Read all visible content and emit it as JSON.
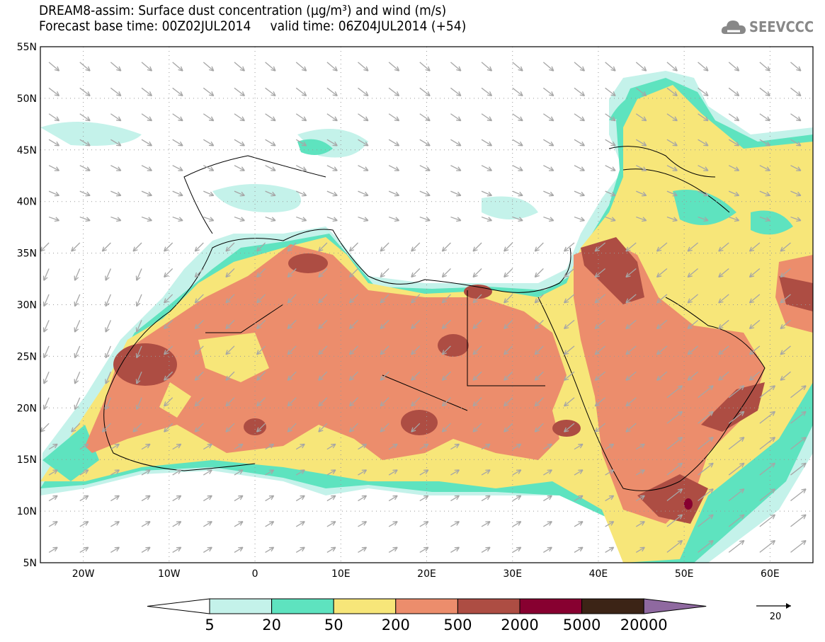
{
  "header": {
    "title_line1": "DREAM8-assim: Surface dust concentration (µg/m³) and wind (m/s)",
    "title_line2": "Forecast base time: 00Z02JUL2014     valid time: 06Z04JUL2014 (+54)",
    "logo_text": "SEEVCCC"
  },
  "map": {
    "lat_ticks": [
      "55N",
      "50N",
      "45N",
      "40N",
      "35N",
      "30N",
      "25N",
      "20N",
      "15N",
      "10N",
      "5N"
    ],
    "lon_ticks": [
      "20W",
      "10W",
      "0",
      "10E",
      "20E",
      "30E",
      "40E",
      "50E",
      "60E"
    ],
    "dust_colors": {
      "c5": "#c4f2ea",
      "c20": "#5ee3bf",
      "c50": "#f7e679",
      "c200": "#ec8d6c",
      "c500": "#ad4d43",
      "c2000": "#870030",
      "c5000": "#3c2416",
      "c20000": "#8f69a0"
    },
    "wind_color": "#a6a6a6"
  },
  "legend": {
    "labels": [
      "5",
      "20",
      "50",
      "200",
      "500",
      "2000",
      "5000",
      "20000"
    ],
    "wind_ref_label": "20"
  }
}
